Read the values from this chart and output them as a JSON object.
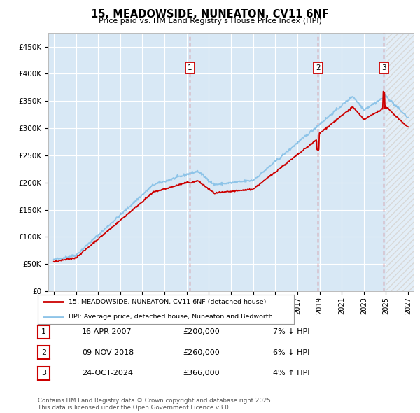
{
  "title": "15, MEADOWSIDE, NUNEATON, CV11 6NF",
  "subtitle": "Price paid vs. HM Land Registry's House Price Index (HPI)",
  "ylim": [
    0,
    475000
  ],
  "yticks": [
    0,
    50000,
    100000,
    150000,
    200000,
    250000,
    300000,
    350000,
    400000,
    450000
  ],
  "ytick_labels": [
    "£0",
    "£50K",
    "£100K",
    "£150K",
    "£200K",
    "£250K",
    "£300K",
    "£350K",
    "£400K",
    "£450K"
  ],
  "xlim_start": 1994.5,
  "xlim_end": 2027.5,
  "future_start": 2025.0,
  "background_color": "#d8e8f5",
  "grid_color": "#ffffff",
  "line_color_hpi": "#8ec4e8",
  "line_color_price": "#cc0000",
  "sale_markers": [
    {
      "num": 1,
      "year": 2007.29,
      "price": 200000,
      "label": "16-APR-2007",
      "amount": "£200,000",
      "pct": "7% ↓ HPI"
    },
    {
      "num": 2,
      "year": 2018.86,
      "price": 260000,
      "label": "09-NOV-2018",
      "amount": "£260,000",
      "pct": "6% ↓ HPI"
    },
    {
      "num": 3,
      "year": 2024.81,
      "price": 366000,
      "label": "24-OCT-2024",
      "amount": "£366,000",
      "pct": "4% ↑ HPI"
    }
  ],
  "legend_line1": "15, MEADOWSIDE, NUNEATON, CV11 6NF (detached house)",
  "legend_line2": "HPI: Average price, detached house, Nuneaton and Bedworth",
  "footer": "Contains HM Land Registry data © Crown copyright and database right 2025.\nThis data is licensed under the Open Government Licence v3.0.",
  "xtick_start": 1995,
  "xtick_end": 2028,
  "xtick_step": 2
}
